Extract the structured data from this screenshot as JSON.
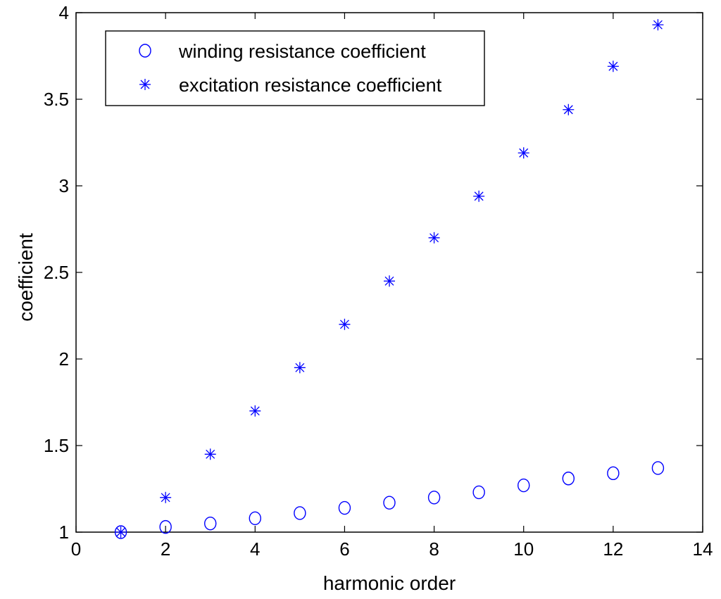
{
  "chart_data": {
    "type": "scatter",
    "title": "",
    "xlabel": "harmonic order",
    "ylabel": "coefficient",
    "xlim": [
      0,
      14
    ],
    "ylim": [
      1,
      4
    ],
    "xticks": [
      0,
      2,
      4,
      6,
      8,
      10,
      12,
      14
    ],
    "yticks": [
      1,
      1.5,
      2,
      2.5,
      3,
      3.5,
      4
    ],
    "xtick_labels": [
      "0",
      "2",
      "4",
      "6",
      "8",
      "10",
      "12",
      "14"
    ],
    "ytick_labels": [
      "1",
      "1.5",
      "2",
      "2.5",
      "3",
      "3.5",
      "4"
    ],
    "grid": false,
    "legend_position": "top-left",
    "x": [
      1,
      2,
      3,
      4,
      5,
      6,
      7,
      8,
      9,
      10,
      11,
      12,
      13
    ],
    "series": [
      {
        "name": "winding resistance coefficient",
        "marker": "circle",
        "color": "#0000ff",
        "values": [
          1.0,
          1.03,
          1.05,
          1.08,
          1.11,
          1.14,
          1.17,
          1.2,
          1.23,
          1.27,
          1.31,
          1.34,
          1.37
        ]
      },
      {
        "name": "excitation resistance coefficient",
        "marker": "asterisk",
        "color": "#0000ff",
        "values": [
          1.0,
          1.2,
          1.45,
          1.7,
          1.95,
          2.2,
          2.45,
          2.7,
          2.94,
          3.19,
          3.44,
          3.69,
          3.93
        ]
      }
    ]
  }
}
